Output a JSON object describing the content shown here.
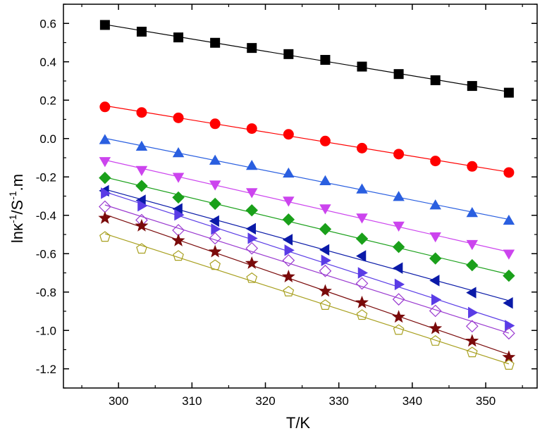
{
  "chart_data": {
    "type": "scatter",
    "title": "",
    "xlabel": "T/K",
    "ylabel_parts": [
      "lnκ",
      "-1",
      "/S",
      "-1",
      ".m"
    ],
    "xlim": [
      292.5,
      357
    ],
    "ylim": [
      -1.3,
      0.7
    ],
    "xticks": [
      300,
      310,
      320,
      330,
      340,
      350
    ],
    "yticks": [
      0.6,
      0.4,
      0.2,
      0.0,
      -0.2,
      -0.4,
      -0.6,
      -0.8,
      -1.0,
      -1.2
    ],
    "ytick_labels": [
      "0.6",
      "0.4",
      "0.2",
      "0.0",
      "-0.2",
      "-0.4",
      "-0.6",
      "-0.8",
      "-1.0",
      "-1.2"
    ],
    "grid": false,
    "x": [
      298.15,
      303.15,
      308.15,
      313.15,
      318.15,
      323.15,
      328.15,
      333.15,
      338.15,
      343.15,
      348.15,
      353.15
    ],
    "series": [
      {
        "marker": "square",
        "color": "#000000",
        "fill": true,
        "values": [
          0.592,
          0.557,
          0.527,
          0.499,
          0.472,
          0.44,
          0.41,
          0.375,
          0.336,
          0.304,
          0.274,
          0.239
        ]
      },
      {
        "marker": "circle",
        "color": "#ff0000",
        "fill": true,
        "values": [
          0.165,
          0.136,
          0.108,
          0.077,
          0.052,
          0.022,
          -0.013,
          -0.05,
          -0.081,
          -0.117,
          -0.145,
          -0.177
        ]
      },
      {
        "marker": "triangle-up",
        "color": "#2a5fe0",
        "fill": true,
        "values": [
          -0.008,
          -0.042,
          -0.076,
          -0.115,
          -0.142,
          -0.182,
          -0.222,
          -0.265,
          -0.304,
          -0.348,
          -0.388,
          -0.428
        ]
      },
      {
        "marker": "triangle-down",
        "color": "#cc44ee",
        "fill": true,
        "values": [
          -0.118,
          -0.164,
          -0.2,
          -0.24,
          -0.28,
          -0.324,
          -0.364,
          -0.412,
          -0.454,
          -0.51,
          -0.55,
          -0.6
        ]
      },
      {
        "marker": "diamond",
        "color": "#1aa01a",
        "fill": true,
        "values": [
          -0.205,
          -0.247,
          -0.307,
          -0.34,
          -0.374,
          -0.422,
          -0.472,
          -0.522,
          -0.565,
          -0.625,
          -0.66,
          -0.715
        ]
      },
      {
        "marker": "triangle-left",
        "color": "#0a1aa8",
        "fill": true,
        "values": [
          -0.272,
          -0.322,
          -0.367,
          -0.43,
          -0.47,
          -0.527,
          -0.58,
          -0.612,
          -0.675,
          -0.74,
          -0.803,
          -0.857
        ]
      },
      {
        "marker": "triangle-right",
        "color": "#5a3ce6",
        "fill": true,
        "values": [
          -0.285,
          -0.35,
          -0.398,
          -0.472,
          -0.52,
          -0.582,
          -0.635,
          -0.7,
          -0.76,
          -0.84,
          -0.907,
          -0.975
        ]
      },
      {
        "marker": "diamond",
        "color": "#9a3ad0",
        "fill": false,
        "values": [
          -0.355,
          -0.425,
          -0.478,
          -0.52,
          -0.572,
          -0.635,
          -0.69,
          -0.755,
          -0.838,
          -0.898,
          -0.978,
          -1.015
        ]
      },
      {
        "marker": "star",
        "color": "#7a0a0a",
        "fill": true,
        "values": [
          -0.415,
          -0.455,
          -0.532,
          -0.59,
          -0.65,
          -0.72,
          -0.795,
          -0.855,
          -0.93,
          -0.99,
          -1.055,
          -1.14
        ]
      },
      {
        "marker": "pentagon",
        "color": "#a8a020",
        "fill": false,
        "values": [
          -0.513,
          -0.575,
          -0.612,
          -0.66,
          -0.728,
          -0.798,
          -0.868,
          -0.92,
          -0.998,
          -1.055,
          -1.115,
          -1.18
        ]
      }
    ]
  }
}
